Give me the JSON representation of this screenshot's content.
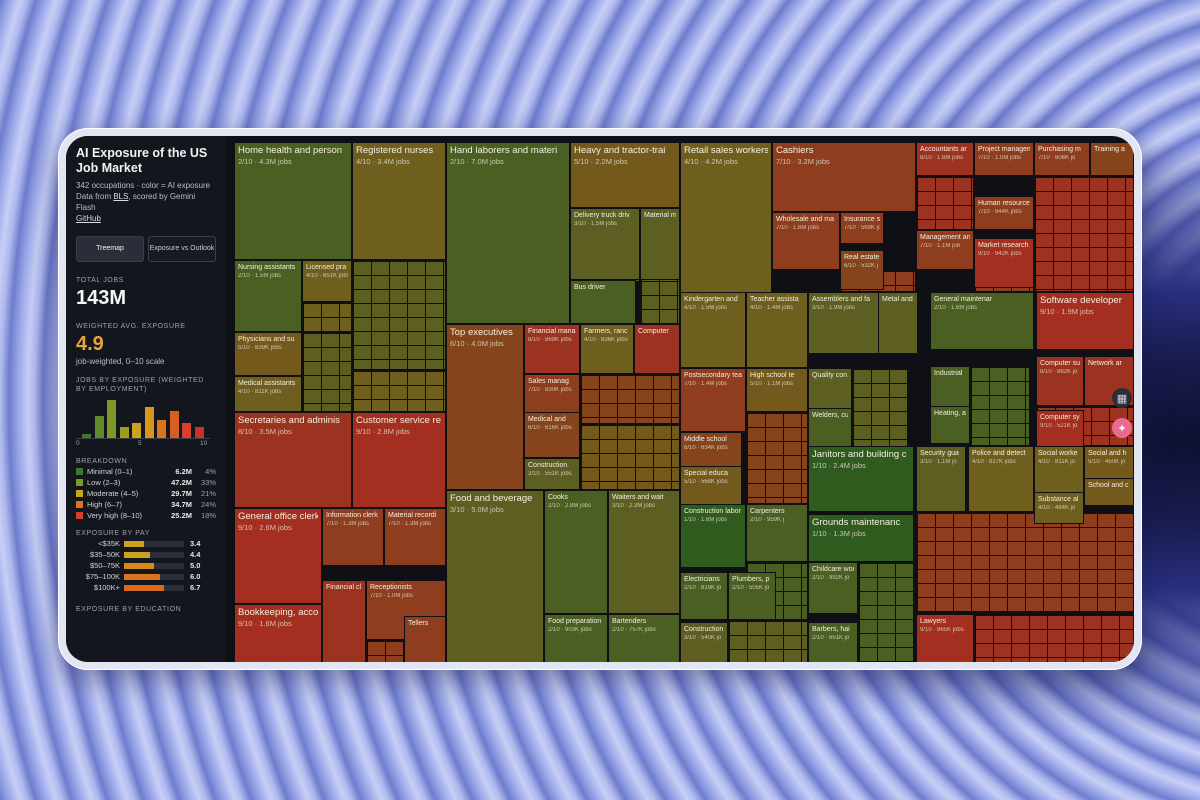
{
  "sidebar": {
    "title": "AI Exposure of the US Job Market",
    "subtitle": "342 occupations · color = AI exposure",
    "data_from_prefix": "Data from ",
    "data_from_link": "BLS",
    "data_from_suffix": ", scored by Gemini Flash",
    "github": "GitHub",
    "view_buttons": [
      "Treemap",
      "Exposure vs Outlook"
    ],
    "total_jobs_label": "TOTAL JOBS",
    "total_jobs_value": "143M",
    "avg_label": "WEIGHTED AVG. EXPOSURE",
    "avg_value": "4.9",
    "avg_note": "job-weighted, 0–10 scale",
    "hist_label": "JOBS BY EXPOSURE (WEIGHTED BY EMPLOYMENT)",
    "hist_ticks": [
      "0",
      "5",
      "10"
    ],
    "hist_values": [
      4,
      20,
      34,
      10,
      13,
      28,
      16,
      24,
      13,
      10
    ],
    "breakdown_label": "BREAKDOWN",
    "breakdown": [
      {
        "label": "Minimal (0–1)",
        "value": "6.2M",
        "pct": "4%",
        "color": "#3e7a27"
      },
      {
        "label": "Low (2–3)",
        "value": "47.2M",
        "pct": "33%",
        "color": "#7c9a25"
      },
      {
        "label": "Moderate (4–5)",
        "value": "29.7M",
        "pct": "21%",
        "color": "#c9a21e"
      },
      {
        "label": "High (6–7)",
        "value": "34.7M",
        "pct": "24%",
        "color": "#d9761d"
      },
      {
        "label": "Very high (8–10)",
        "value": "25.2M",
        "pct": "18%",
        "color": "#d4402a"
      }
    ],
    "pay_label": "EXPOSURE BY PAY",
    "pay": [
      {
        "label": "<$35K",
        "value": "3.4",
        "fill": 0.34,
        "color": "#c9a21e"
      },
      {
        "label": "$35–50K",
        "value": "4.4",
        "fill": 0.44,
        "color": "#c9a21e"
      },
      {
        "label": "$50–75K",
        "value": "5.0",
        "fill": 0.5,
        "color": "#d9881d"
      },
      {
        "label": "$75–100K",
        "value": "6.0",
        "fill": 0.6,
        "color": "#d9761d"
      },
      {
        "label": "$100K+",
        "value": "6.7",
        "fill": 0.67,
        "color": "#d96a1d"
      }
    ],
    "edu_label": "EXPOSURE BY EDUCATION"
  },
  "tiles": [
    {
      "name": "Home health and person",
      "meta": "2/10 · 4.3M jobs",
      "color": "#4b5f23",
      "lg": true
    },
    {
      "name": "Registered nurses",
      "meta": "4/10 · 3.4M jobs",
      "color": "#6e5f1f",
      "lg": true
    },
    {
      "name": "Nursing assistants",
      "meta": "2/10 · 1.5M jobs",
      "color": "#4b5f23"
    },
    {
      "name": "Licensed pra",
      "meta": "4/10 · 651K jobs",
      "color": "#6e5f1f"
    },
    {
      "name": "Physicians and su",
      "meta": "5/10 · 839K jobs",
      "color": "#74591c"
    },
    {
      "name": "Medical assistants",
      "meta": "4/10 · 811K jobs",
      "color": "#6e5f1f"
    },
    {
      "name": "Secretaries and adminis",
      "meta": "8/10 · 3.5M jobs",
      "color": "#9c3320",
      "lg": true
    },
    {
      "name": "Customer service re",
      "meta": "9/10 · 2.8M jobs",
      "color": "#a42e1f",
      "lg": true
    },
    {
      "name": "General office clerk",
      "meta": "9/10 · 2.6M jobs",
      "color": "#a42e1f",
      "lg": true
    },
    {
      "name": "Information clerk",
      "meta": "7/10 · 1.3M jobs",
      "color": "#8e3d1e"
    },
    {
      "name": "Material recordi",
      "meta": "7/10 · 1.3M jobs",
      "color": "#8e3d1e"
    },
    {
      "name": "Financial cl",
      "meta": "",
      "color": "#9c3320"
    },
    {
      "name": "Receptionists",
      "meta": "7/10 · 1.0M jobs",
      "color": "#8e3d1e"
    },
    {
      "name": "Bookkeeping, acco",
      "meta": "9/10 · 1.6M jobs",
      "color": "#a42e1f",
      "lg": true
    },
    {
      "name": "Tellers",
      "meta": "",
      "color": "#8e3d1e"
    },
    {
      "name": "Hand laborers and materi",
      "meta": "2/10 · 7.0M jobs",
      "color": "#4b5f23",
      "lg": true
    },
    {
      "name": "Heavy and tractor-trai",
      "meta": "5/10 · 2.2M jobs",
      "color": "#74591c",
      "lg": true
    },
    {
      "name": "Delivery truck driv",
      "meta": "3/10 · 1.5M jobs",
      "color": "#5c5e22"
    },
    {
      "name": "Material m",
      "meta": "",
      "color": "#5c5e22"
    },
    {
      "name": "Bus driver",
      "meta": "",
      "color": "#4b5f23"
    },
    {
      "name": "Top executives",
      "meta": "6/10 · 4.0M jobs",
      "color": "#85441c",
      "lg": true
    },
    {
      "name": "Financial mana",
      "meta": "8/10 · 869K jobs",
      "color": "#9c3320"
    },
    {
      "name": "Farmers, ranc",
      "meta": "4/10 · 836K jobs",
      "color": "#6e5f1f"
    },
    {
      "name": "Computer",
      "meta": "",
      "color": "#9c3320"
    },
    {
      "name": "Sales manag",
      "meta": "7/10 · 830K jobs",
      "color": "#8e3d1e"
    },
    {
      "name": "Medical and",
      "meta": "6/10 · 616K jobs",
      "color": "#85441c"
    },
    {
      "name": "Construction",
      "meta": "3/10 · 551K jobs",
      "color": "#5c5e22"
    },
    {
      "name": "Food and beverage",
      "meta": "3/10 · 5.0M jobs",
      "color": "#5c5e22",
      "lg": true
    },
    {
      "name": "Cooks",
      "meta": "2/10 · 2.8M jobs",
      "color": "#4b5f23"
    },
    {
      "name": "Waiters and wait",
      "meta": "3/10 · 2.3M jobs",
      "color": "#5c5e22"
    },
    {
      "name": "Food preparation",
      "meta": "2/10 · 903K jobs",
      "color": "#4b5f23"
    },
    {
      "name": "Bartenders",
      "meta": "2/10 · 757K jobs",
      "color": "#4b5f23"
    },
    {
      "name": "Retail sales workers",
      "meta": "4/10 · 4.2M jobs",
      "color": "#6e5f1f",
      "lg": true
    },
    {
      "name": "Cashiers",
      "meta": "7/10 · 3.2M jobs",
      "color": "#8e3d1e",
      "lg": true
    },
    {
      "name": "Wholesale and ma",
      "meta": "7/10 · 1.6M jobs",
      "color": "#8e3d1e"
    },
    {
      "name": "Insurance s",
      "meta": "7/10 · 569K jo",
      "color": "#8e3d1e"
    },
    {
      "name": "Real estate",
      "meta": "6/10 · 532K j",
      "color": "#85441c"
    },
    {
      "name": "Accountants ar",
      "meta": "8/10 · 1.6M jobs",
      "color": "#9c3320"
    },
    {
      "name": "Project managem",
      "meta": "7/10 · 1.0M jobs",
      "color": "#8e3d1e"
    },
    {
      "name": "Purchasing m",
      "meta": "7/10 · 606K jo",
      "color": "#8e3d1e"
    },
    {
      "name": "Training a",
      "meta": "",
      "color": "#85441c"
    },
    {
      "name": "Human resource",
      "meta": "7/10 · 944K jobs",
      "color": "#8e3d1e"
    },
    {
      "name": "Management an",
      "meta": "7/10 · 1.1M job",
      "color": "#8e3d1e"
    },
    {
      "name": "Market research",
      "meta": "9/10 · 942K jobs",
      "color": "#a42e1f"
    },
    {
      "name": "Kindergarten and",
      "meta": "4/10 · 1.5M jobs",
      "color": "#6e5f1f"
    },
    {
      "name": "Teacher assista",
      "meta": "4/10 · 1.4M jobs",
      "color": "#6e5f1f"
    },
    {
      "name": "Postsecondary tea",
      "meta": "7/10 · 1.4M jobs",
      "color": "#8e3d1e"
    },
    {
      "name": "High school te",
      "meta": "5/10 · 1.1M jobs",
      "color": "#74591c"
    },
    {
      "name": "Middle school",
      "meta": "6/10 · 634K jobs",
      "color": "#85441c"
    },
    {
      "name": "Special educa",
      "meta": "5/10 · 568K jobs",
      "color": "#74591c"
    },
    {
      "name": "Assemblers and fa",
      "meta": "3/10 · 1.9M jobs",
      "color": "#5c5e22",
      "lg": false
    },
    {
      "name": "Metal and",
      "meta": "",
      "color": "#5c5e22"
    },
    {
      "name": "Quality con",
      "meta": "",
      "color": "#5c5e22"
    },
    {
      "name": "Welders, cu",
      "meta": "",
      "color": "#4b5f23"
    },
    {
      "name": "General maintenar",
      "meta": "2/10 · 1.6M jobs",
      "color": "#4b5f23"
    },
    {
      "name": "Industrial",
      "meta": "",
      "color": "#4b5f23"
    },
    {
      "name": "Heating, a",
      "meta": "",
      "color": "#4b5f23"
    },
    {
      "name": "Software developer",
      "meta": "9/10 · 1.9M jobs",
      "color": "#a42e1f",
      "lg": true
    },
    {
      "name": "Computer su",
      "meta": "8/10 · 882K jo",
      "color": "#9c3320"
    },
    {
      "name": "Network ar",
      "meta": "",
      "color": "#9c3320"
    },
    {
      "name": "Computer sy",
      "meta": "9/10 · 521K jo",
      "color": "#a42e1f"
    },
    {
      "name": "Construction labor",
      "meta": "1/10 · 1.6M jobs",
      "color": "#2f5b1f"
    },
    {
      "name": "Carpenters",
      "meta": "2/10 · 959K j",
      "color": "#4b5f23"
    },
    {
      "name": "Electricians",
      "meta": "2/10 · 819K jo",
      "color": "#4b5f23"
    },
    {
      "name": "Plumbers, p",
      "meta": "2/10 · 505K jo",
      "color": "#4b5f23"
    },
    {
      "name": "Construction",
      "meta": "3/10 · 540K jo",
      "color": "#5c5e22"
    },
    {
      "name": "Janitors and building c",
      "meta": "1/10 · 2.4M jobs",
      "color": "#2f5b1f",
      "lg": true
    },
    {
      "name": "Grounds maintenanc",
      "meta": "1/10 · 1.3M jobs",
      "color": "#2f5b1f",
      "lg": true
    },
    {
      "name": "Childcare wor",
      "meta": "2/10 · 992K jo",
      "color": "#4b5f23"
    },
    {
      "name": "Barbers, hai",
      "meta": "2/10 · 651K jo",
      "color": "#4b5f23"
    },
    {
      "name": "Security gua",
      "meta": "3/10 · 1.1M jo",
      "color": "#5c5e22"
    },
    {
      "name": "Police and detect",
      "meta": "4/10 · 827K jobs",
      "color": "#6e5f1f"
    },
    {
      "name": "Social worke",
      "meta": "4/10 · 811K jo",
      "color": "#6e5f1f"
    },
    {
      "name": "Social and h",
      "meta": "5/10 · 450K jo",
      "color": "#74591c"
    },
    {
      "name": "School and c",
      "meta": "",
      "color": "#74591c"
    },
    {
      "name": "Substance al",
      "meta": "4/10 · 484K jo",
      "color": "#6e5f1f"
    },
    {
      "name": "Lawyers",
      "meta": "9/10 · 865K jobs",
      "color": "#a42e1f"
    }
  ]
}
